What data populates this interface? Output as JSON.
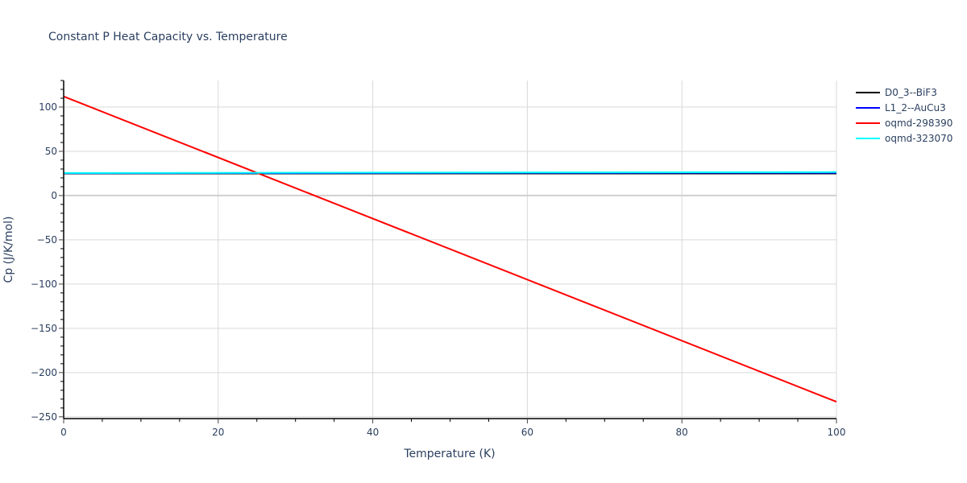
{
  "chart_data": {
    "type": "line",
    "title": "Constant P Heat Capacity vs. Temperature",
    "xlabel": "Temperature (K)",
    "ylabel": "Cp (J/K/mol)",
    "xlim": [
      0,
      100
    ],
    "ylim": [
      -252,
      130
    ],
    "xticks": [
      0,
      20,
      40,
      60,
      80,
      100
    ],
    "yticks": [
      -250,
      -200,
      -150,
      -100,
      -50,
      0,
      50,
      100
    ],
    "xminor_step": 5,
    "yminor_step": 10,
    "grid": true,
    "legend_position": "top-right-outside",
    "series": [
      {
        "name": "D0_3--BiF3",
        "color": "#000000",
        "x": [
          0,
          100
        ],
        "values": [
          25.0,
          25.0
        ]
      },
      {
        "name": "L1_2--AuCu3",
        "color": "#0000ff",
        "x": [
          0,
          100
        ],
        "values": [
          25.3,
          25.8
        ]
      },
      {
        "name": "oqmd-298390",
        "color": "#ff0000",
        "x": [
          0,
          100
        ],
        "values": [
          112,
          -233
        ]
      },
      {
        "name": "oqmd-323070",
        "color": "#00ffff",
        "x": [
          0,
          100
        ],
        "values": [
          25.5,
          26.5
        ]
      }
    ]
  }
}
